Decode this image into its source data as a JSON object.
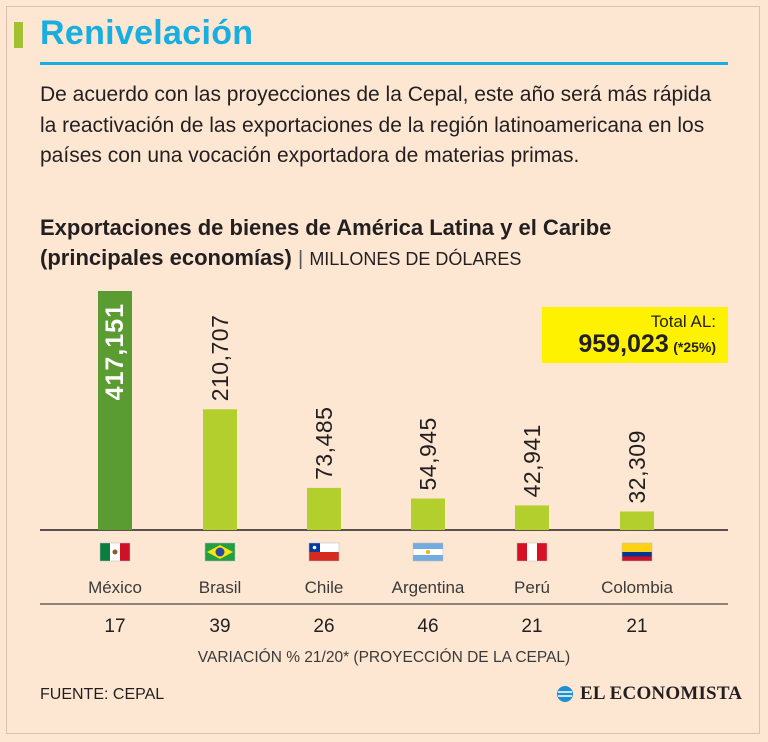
{
  "header": {
    "title": "Renivelación",
    "intro": "De acuerdo con las proyecciones de la Cepal, este año será más rápida la reactivación de las exportaciones de la región latinoamericana en los países con una vocación exportadora de materias primas."
  },
  "chart_data": {
    "type": "bar",
    "title": "Exportaciones de bienes de América Latina y el Caribe",
    "title_line2": "(principales economías)",
    "separator": "|",
    "units": "MILLONES DE DÓLARES",
    "categories": [
      "México",
      "Brasil",
      "Chile",
      "Argentina",
      "Perú",
      "Colombia"
    ],
    "values": [
      417151,
      210707,
      73485,
      54945,
      42941,
      32309
    ],
    "value_labels": [
      "417,151",
      "210,707",
      "73,485",
      "54,945",
      "42,941",
      "32,309"
    ],
    "variation": [
      "17",
      "39",
      "26",
      "46",
      "21",
      "21"
    ],
    "variation_caption": "VARIACIÓN % 21/20* (PROYECCIÓN DE LA CEPAL)",
    "ylim": [
      0,
      417151
    ],
    "highlight_index": 0,
    "colors": {
      "bar": "#b3cf2e",
      "highlight": "#5b9c32",
      "axis": "#231f20"
    },
    "total": {
      "label": "Total AL:",
      "value": "959,023",
      "variation": "(*25%)",
      "color": "#fff200"
    }
  },
  "footer": {
    "source": "FUENTE: CEPAL",
    "brand": "EL ECONOMISTA"
  },
  "colors": {
    "accent": "#19aee0",
    "background": "#fde7d3",
    "tag": "#a2c130"
  }
}
